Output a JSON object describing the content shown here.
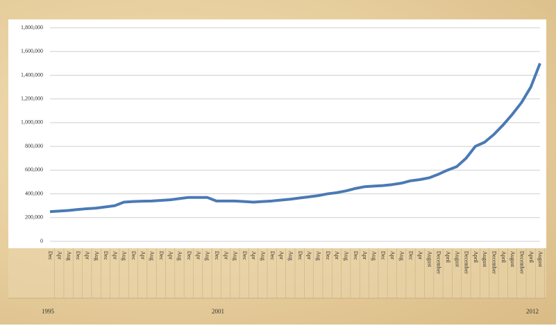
{
  "chart_data": {
    "type": "line",
    "categories": [
      "Dec",
      "Apr",
      "Aug",
      "Dec",
      "Apr",
      "Aug",
      "Dec",
      "Apr",
      "Aug",
      "Dec",
      "Apr",
      "Aug",
      "Dec",
      "Apr",
      "Aug",
      "Dec",
      "Apr",
      "Aug",
      "Dec",
      "Apr",
      "Aug",
      "Dec",
      "Apr",
      "Aug",
      "Dec",
      "Apr",
      "Aug",
      "Dec",
      "Apr",
      "Aug",
      "Dec",
      "Apr",
      "Aug",
      "Dec",
      "Apr",
      "Aug",
      "Dec",
      "Apr",
      "Aug",
      "Dec",
      "Apr",
      "August",
      "December",
      "April",
      "August",
      "December",
      "April",
      "August",
      "December",
      "April",
      "August",
      "December",
      "April",
      "August"
    ],
    "series": [
      {
        "color": "#4a7ab5",
        "values": [
          250000,
          255000,
          260000,
          268000,
          275000,
          280000,
          290000,
          300000,
          330000,
          335000,
          338000,
          340000,
          345000,
          350000,
          360000,
          370000,
          370000,
          370000,
          340000,
          340000,
          340000,
          335000,
          330000,
          335000,
          340000,
          348000,
          355000,
          365000,
          375000,
          385000,
          400000,
          410000,
          425000,
          445000,
          460000,
          465000,
          470000,
          478000,
          490000,
          510000,
          520000,
          535000,
          565000,
          600000,
          630000,
          700000,
          800000,
          835000,
          900000,
          980000,
          1070000,
          1170000,
          1300000,
          1500000
        ]
      }
    ],
    "ylim": [
      0,
      1800000
    ],
    "yticks": [
      {
        "value": 0,
        "label": "0"
      },
      {
        "value": 200000,
        "label": "200,000"
      },
      {
        "value": 400000,
        "label": "400,000"
      },
      {
        "value": 600000,
        "label": "600,000"
      },
      {
        "value": 800000,
        "label": "800,000"
      },
      {
        "value": 1000000,
        "label": "1,000,000"
      },
      {
        "value": 1200000,
        "label": "1,200,000"
      },
      {
        "value": 1400000,
        "label": "1,400,000"
      },
      {
        "value": 1600000,
        "label": "1,600,000"
      },
      {
        "value": 1800000,
        "label": "1,800,000"
      }
    ],
    "grid": true,
    "year_labels": [
      "1995",
      "2001",
      "2012"
    ]
  }
}
